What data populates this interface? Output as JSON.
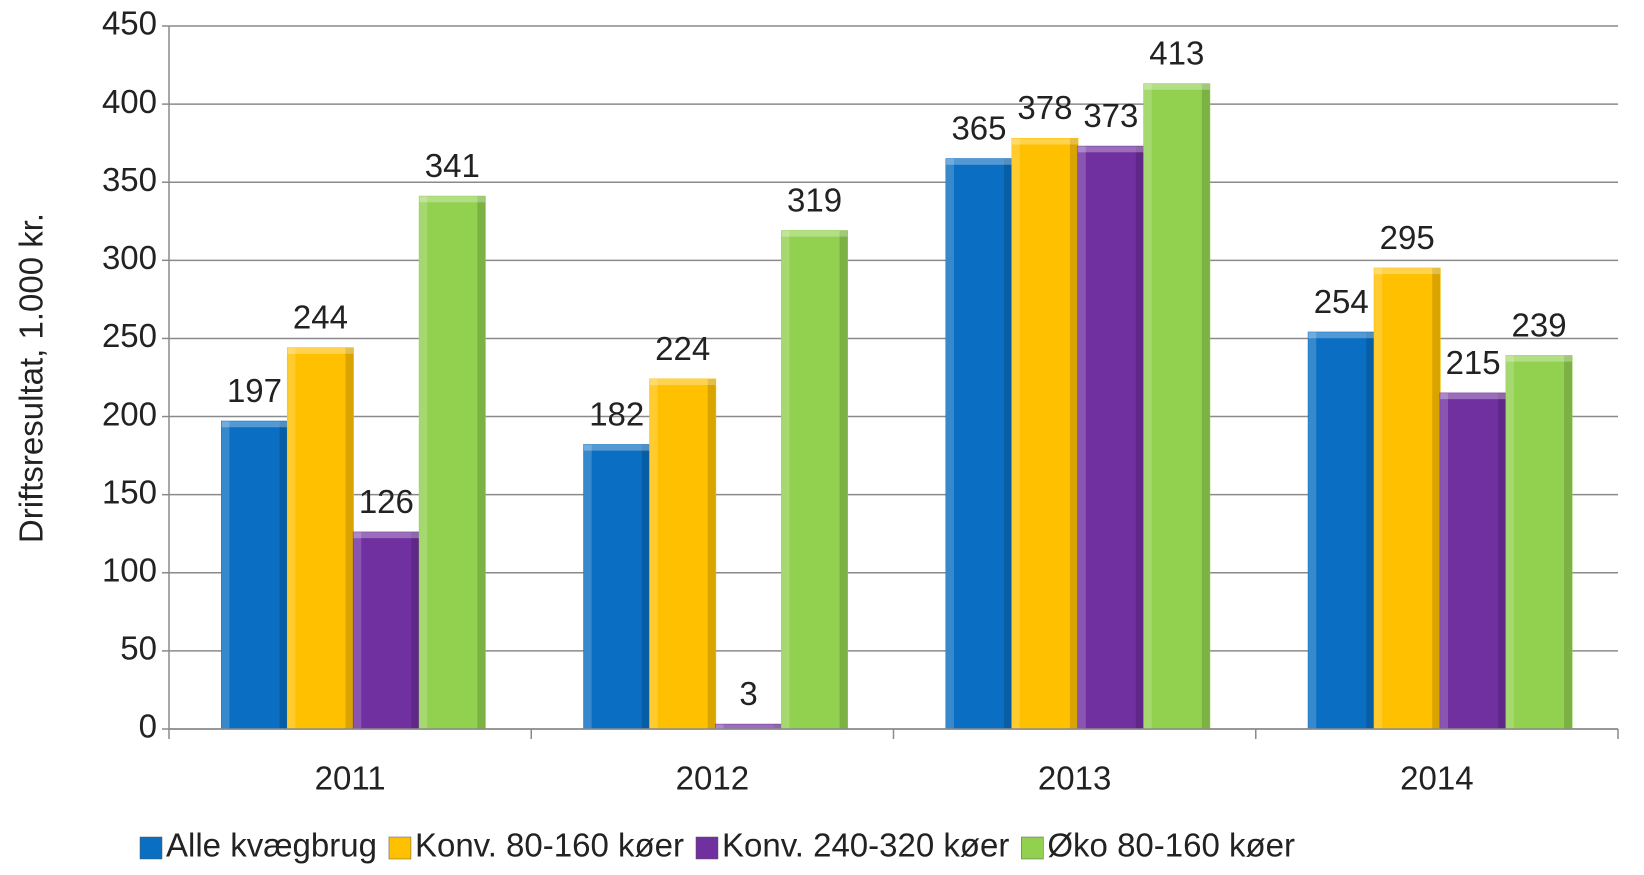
{
  "chart_data": {
    "type": "bar",
    "y_label": "Driftsresultat, 1.000 kr.",
    "categories": [
      "2011",
      "2012",
      "2013",
      "2014"
    ],
    "series": [
      {
        "name": "Alle kvægbrug",
        "color": "#0a6fc2",
        "values": [
          197,
          182,
          365,
          254
        ]
      },
      {
        "name": "Konv. 80-160 køer",
        "color": "#ffc000",
        "values": [
          244,
          224,
          378,
          295
        ]
      },
      {
        "name": "Konv. 240-320 køer",
        "color": "#7030a0",
        "values": [
          126,
          3,
          373,
          215
        ]
      },
      {
        "name": "Øko 80-160 køer",
        "color": "#92d050",
        "values": [
          341,
          319,
          413,
          239
        ]
      }
    ],
    "ylim": [
      0,
      450
    ],
    "yticks": [
      0,
      50,
      100,
      150,
      200,
      250,
      300,
      350,
      400,
      450
    ],
    "grid": true,
    "legend": "bottom"
  }
}
